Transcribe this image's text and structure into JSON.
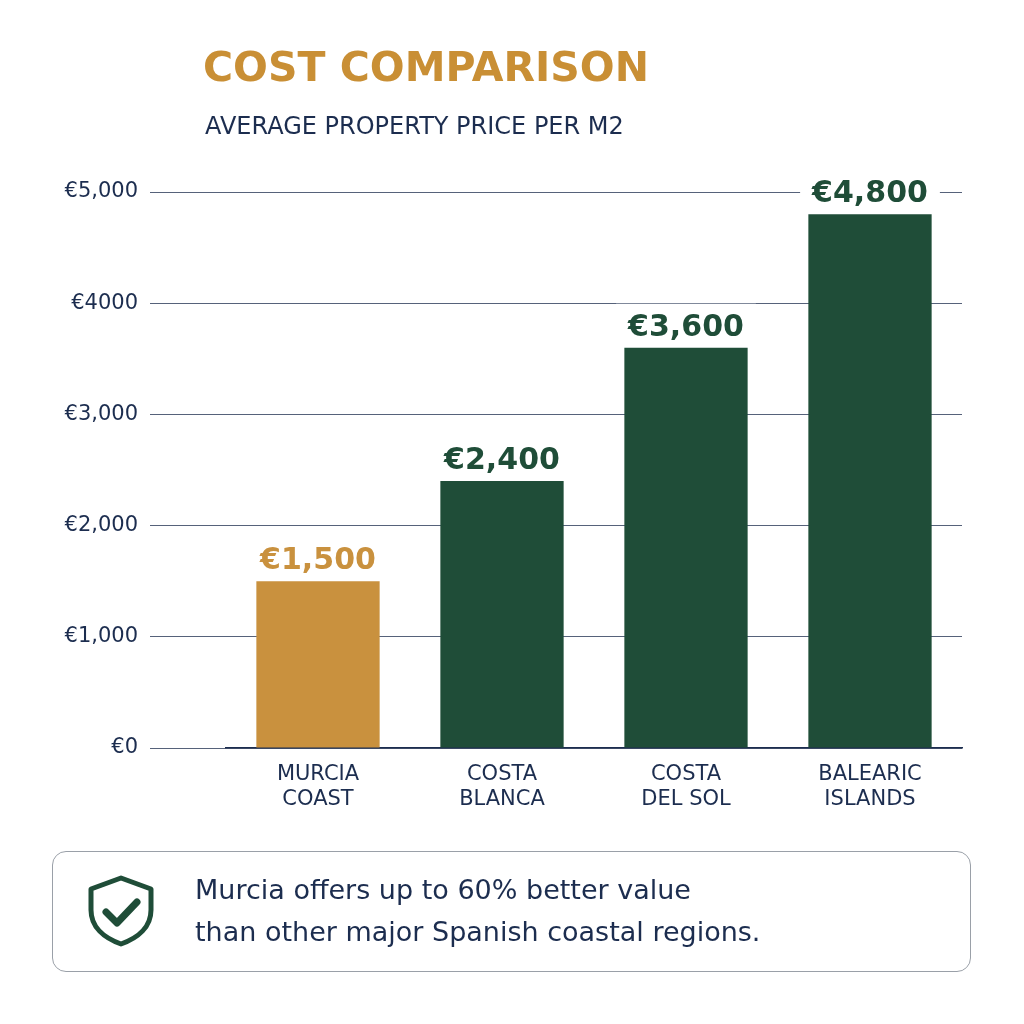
{
  "chart_data": {
    "type": "bar",
    "title": "COST COMPARISON",
    "subtitle": "AVERAGE PROPERTY PRICE PER M2",
    "categories": [
      "MURCIA COAST",
      "COSTA BLANCA",
      "COSTA DEL SOL",
      "BALEARIC ISLANDS"
    ],
    "values": [
      1500,
      2400,
      3600,
      4800
    ],
    "colors": [
      "#c9913e",
      "#1f4d38",
      "#1f4d38",
      "#1f4d38"
    ],
    "value_labels": [
      "€1,500",
      "€2,400",
      "€3,600",
      "€4,800"
    ],
    "ylim": [
      0,
      5000
    ],
    "yticks": [
      {
        "value": 0,
        "label": "€0"
      },
      {
        "value": 1000,
        "label": "€1,000"
      },
      {
        "value": 2000,
        "label": "€2,000"
      },
      {
        "value": 3000,
        "label": "€3,000"
      },
      {
        "value": 4000,
        "label": "€4000"
      },
      {
        "value": 5000,
        "label": "€5,000"
      }
    ],
    "grid": "y",
    "annotations": [
      "Murcia offers up to 60% better value than other major Spanish coastal regions."
    ]
  }
}
